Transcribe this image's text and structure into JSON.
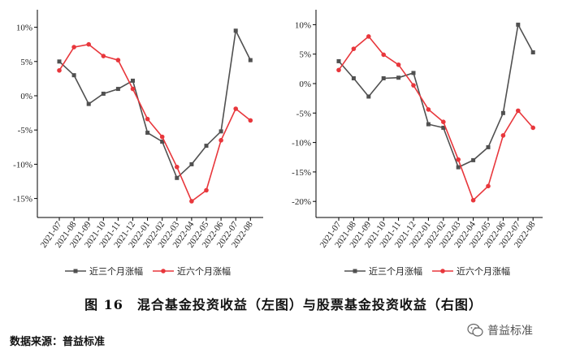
{
  "chart_data": [
    {
      "type": "line",
      "categories": [
        "2021-07",
        "2021-08",
        "2021-09",
        "2021-10",
        "2021-11",
        "2021-12",
        "2022-01",
        "2022-02",
        "2022-03",
        "2022-04",
        "2022-05",
        "2022-06",
        "2022-07",
        "2022-08"
      ],
      "y_ticks": [
        "10%",
        "5%",
        "0%",
        "-5%",
        "-10%",
        "-15%"
      ],
      "ylim": [
        -0.175,
        0.12
      ],
      "legend_position": "bottom",
      "grid": false,
      "series": [
        {
          "name": "近三个月涨幅",
          "color": "#505050",
          "marker": "square",
          "values": [
            0.05,
            0.03,
            -0.012,
            0.003,
            0.01,
            0.022,
            -0.054,
            -0.067,
            -0.12,
            -0.1,
            -0.073,
            -0.052,
            0.095,
            0.052
          ]
        },
        {
          "name": "近六个月涨幅",
          "color": "#e8373c",
          "marker": "circle",
          "values": [
            0.037,
            0.071,
            0.075,
            0.058,
            0.052,
            0.01,
            -0.034,
            -0.06,
            -0.104,
            -0.154,
            -0.138,
            -0.065,
            -0.019,
            -0.036
          ]
        }
      ]
    },
    {
      "type": "line",
      "categories": [
        "2021-07",
        "2021-08",
        "2021-09",
        "2021-10",
        "2021-11",
        "2021-12",
        "2022-01",
        "2022-02",
        "2022-03",
        "2022-04",
        "2022-05",
        "2022-06",
        "2022-07",
        "2022-08"
      ],
      "y_ticks": [
        "10%",
        "5%",
        "0%",
        "-5%",
        "-10%",
        "-15%",
        "-20%"
      ],
      "ylim": [
        -0.225,
        0.12
      ],
      "legend_position": "bottom",
      "grid": false,
      "series": [
        {
          "name": "近三个月涨幅",
          "color": "#505050",
          "marker": "square",
          "values": [
            0.038,
            0.009,
            -0.022,
            0.009,
            0.01,
            0.018,
            -0.069,
            -0.075,
            -0.142,
            -0.13,
            -0.108,
            -0.05,
            0.1,
            0.053
          ]
        },
        {
          "name": "近六个月涨幅",
          "color": "#e8373c",
          "marker": "circle",
          "values": [
            0.023,
            0.059,
            0.08,
            0.049,
            0.032,
            -0.003,
            -0.044,
            -0.065,
            -0.129,
            -0.198,
            -0.174,
            -0.088,
            -0.046,
            -0.075
          ]
        }
      ]
    }
  ],
  "caption": "图 16　混合基金投资收益（左图）与股票基金投资收益（右图）",
  "source": "数据来源：普益标准",
  "watermark": "普益标准",
  "tick_values": [
    0.1,
    0.05,
    0,
    -0.05,
    -0.1,
    -0.15,
    -0.2
  ]
}
